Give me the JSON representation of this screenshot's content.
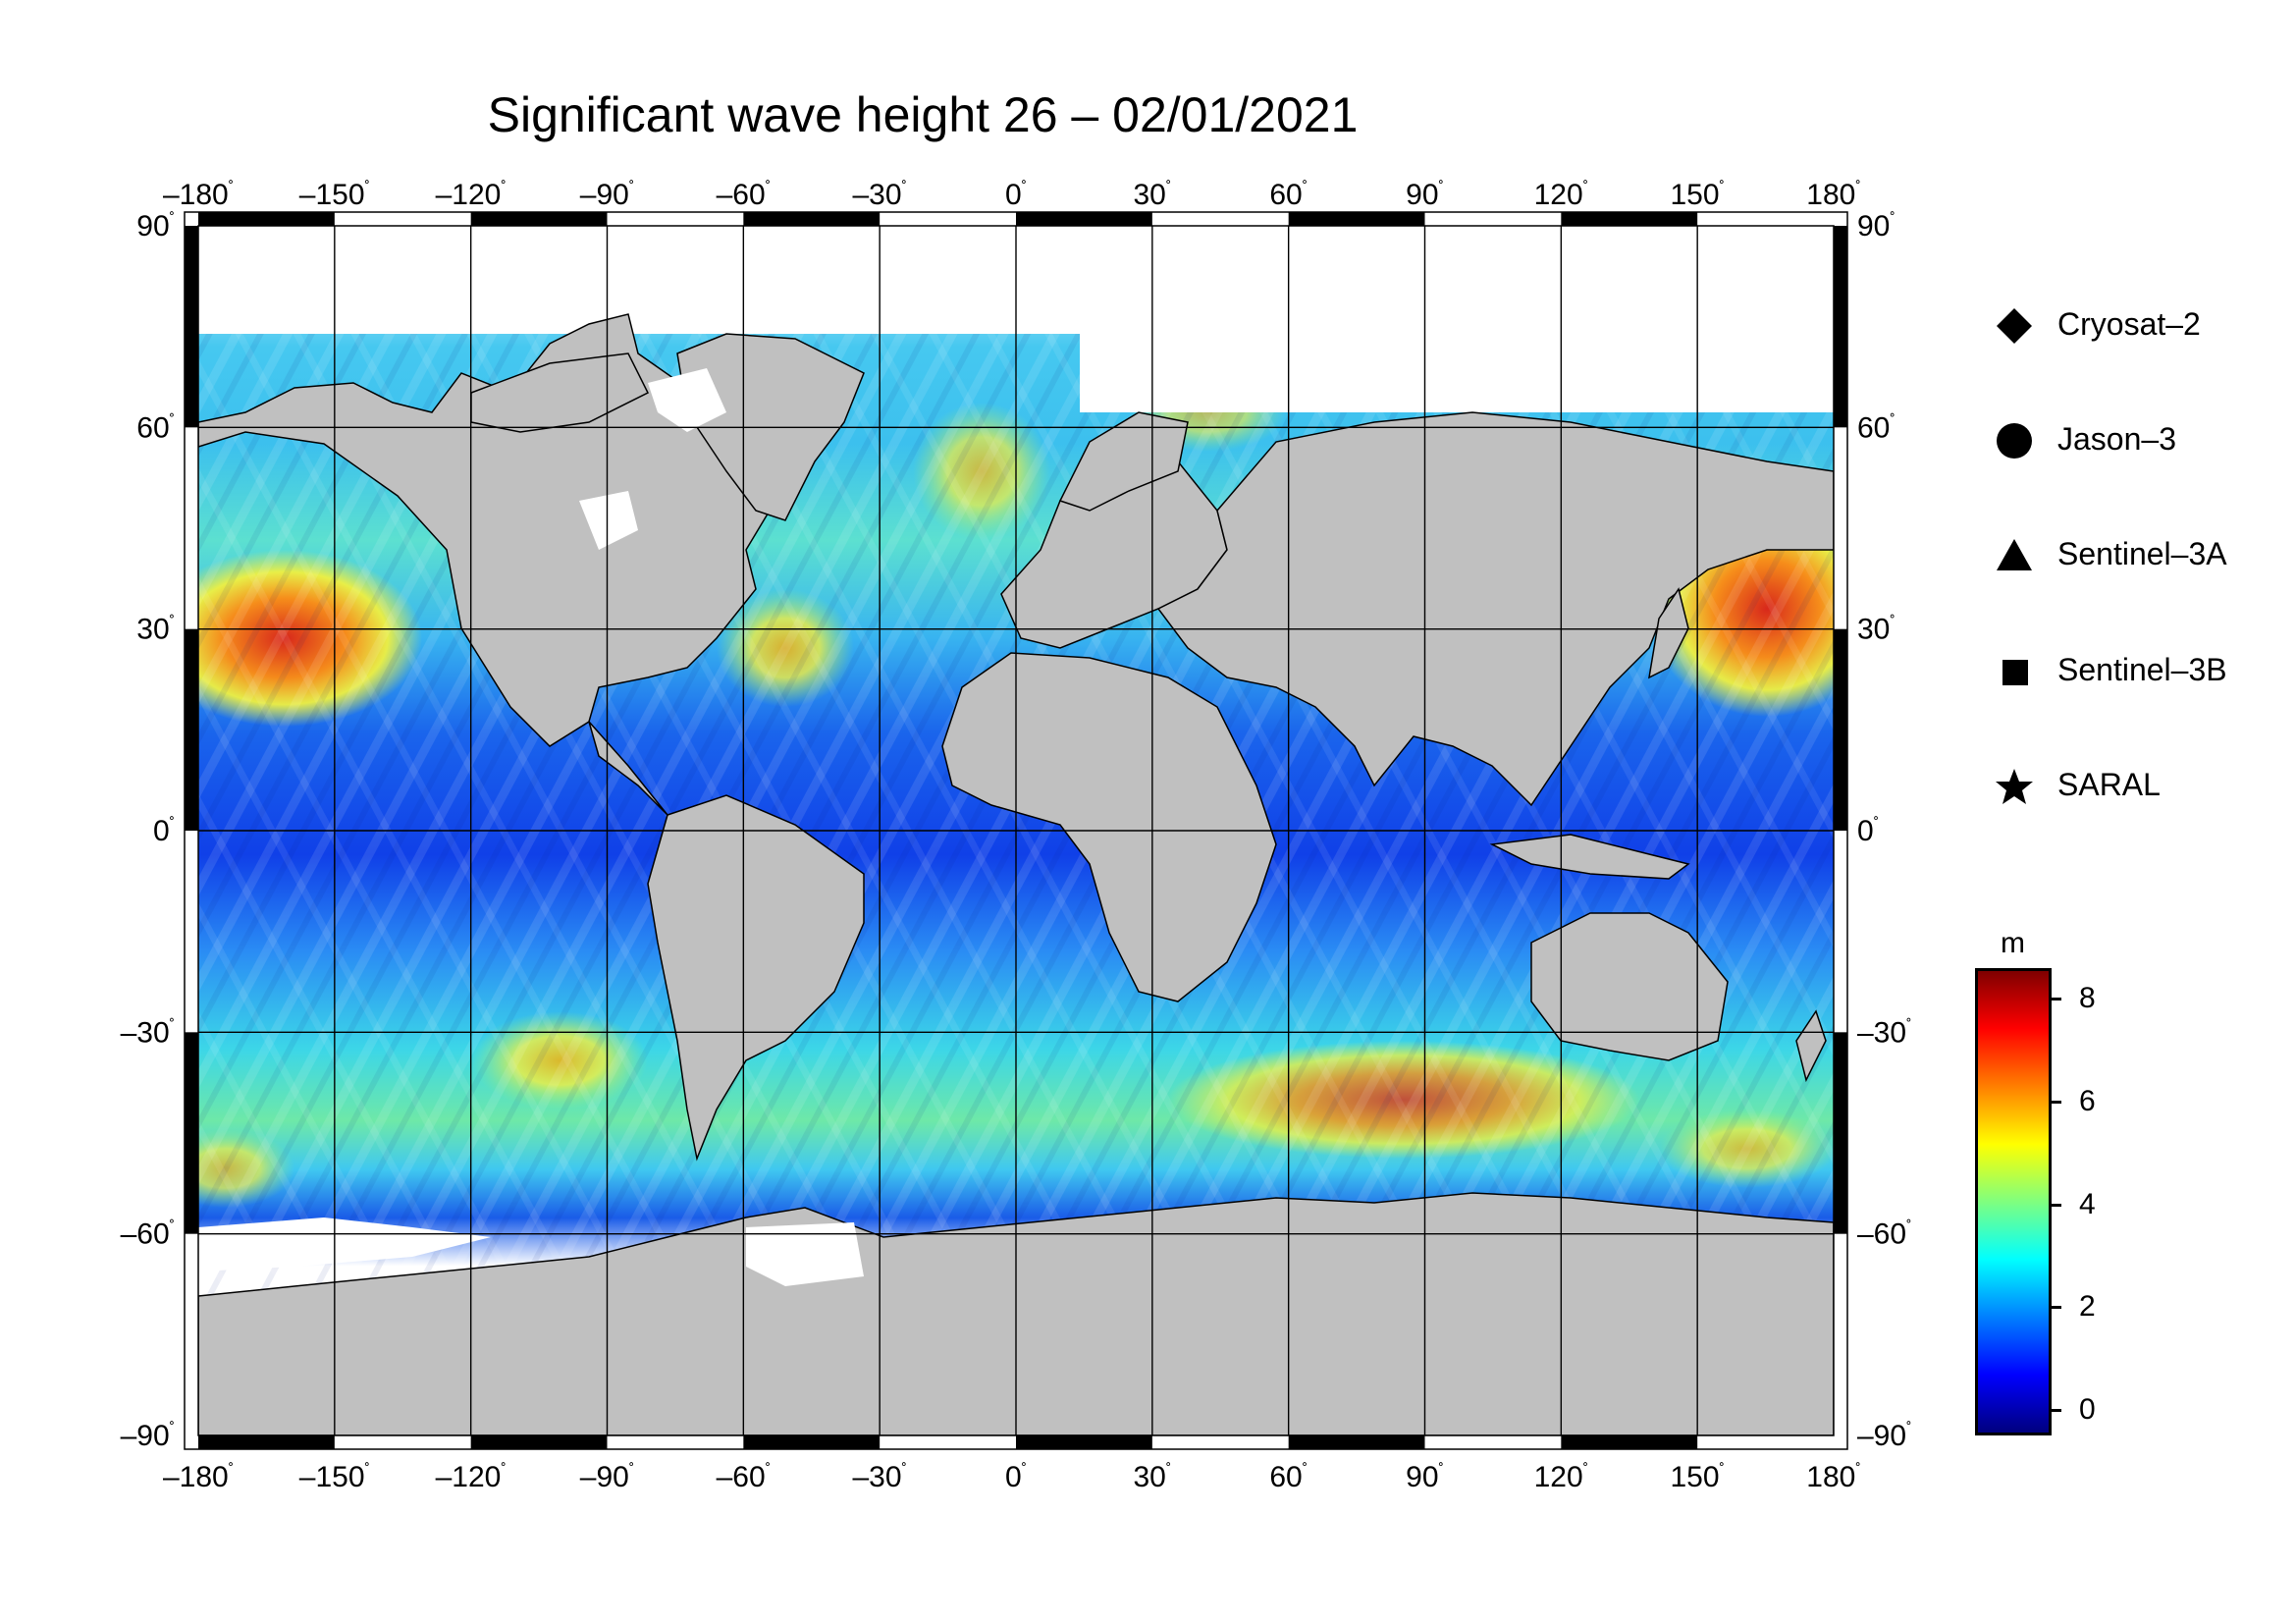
{
  "title": "Significant wave height 26 – 02/01/2021",
  "map": {
    "projection": "equirectangular",
    "lon_range": [
      -180,
      180
    ],
    "lat_range": [
      -90,
      90
    ],
    "graticule_step_deg": 30,
    "lon_ticks": [
      "–180",
      "–150",
      "–120",
      "–90",
      "–60",
      "–30",
      "0",
      "30",
      "60",
      "90",
      "120",
      "150",
      "180"
    ],
    "lat_ticks": [
      "90",
      "60",
      "30",
      "0",
      "–30",
      "–60",
      "–90"
    ],
    "degree_symbol": "˚",
    "land_color": "#c0c0c0",
    "ice_color": "#ffffff",
    "frame_color": "#000000"
  },
  "legend": {
    "items": [
      {
        "label": "Cryosat–2",
        "symbol": "diamond-icon"
      },
      {
        "label": "Jason–3",
        "symbol": "circle-icon"
      },
      {
        "label": "Sentinel–3A",
        "symbol": "triangle-icon"
      },
      {
        "label": "Sentinel–3B",
        "symbol": "square-icon"
      },
      {
        "label": "SARAL",
        "symbol": "star-icon"
      }
    ]
  },
  "colorbar": {
    "unit": "m",
    "min": -0.5,
    "max": 8.6,
    "tick_values": [
      0,
      2,
      4,
      6,
      8
    ],
    "tick_labels": [
      "0",
      "2",
      "4",
      "6",
      "8"
    ],
    "colormap": [
      "#00007f",
      "#0000ff",
      "#007fff",
      "#00ffff",
      "#7fff7f",
      "#ffff00",
      "#ff7f00",
      "#ff0000",
      "#7f0000"
    ]
  }
}
